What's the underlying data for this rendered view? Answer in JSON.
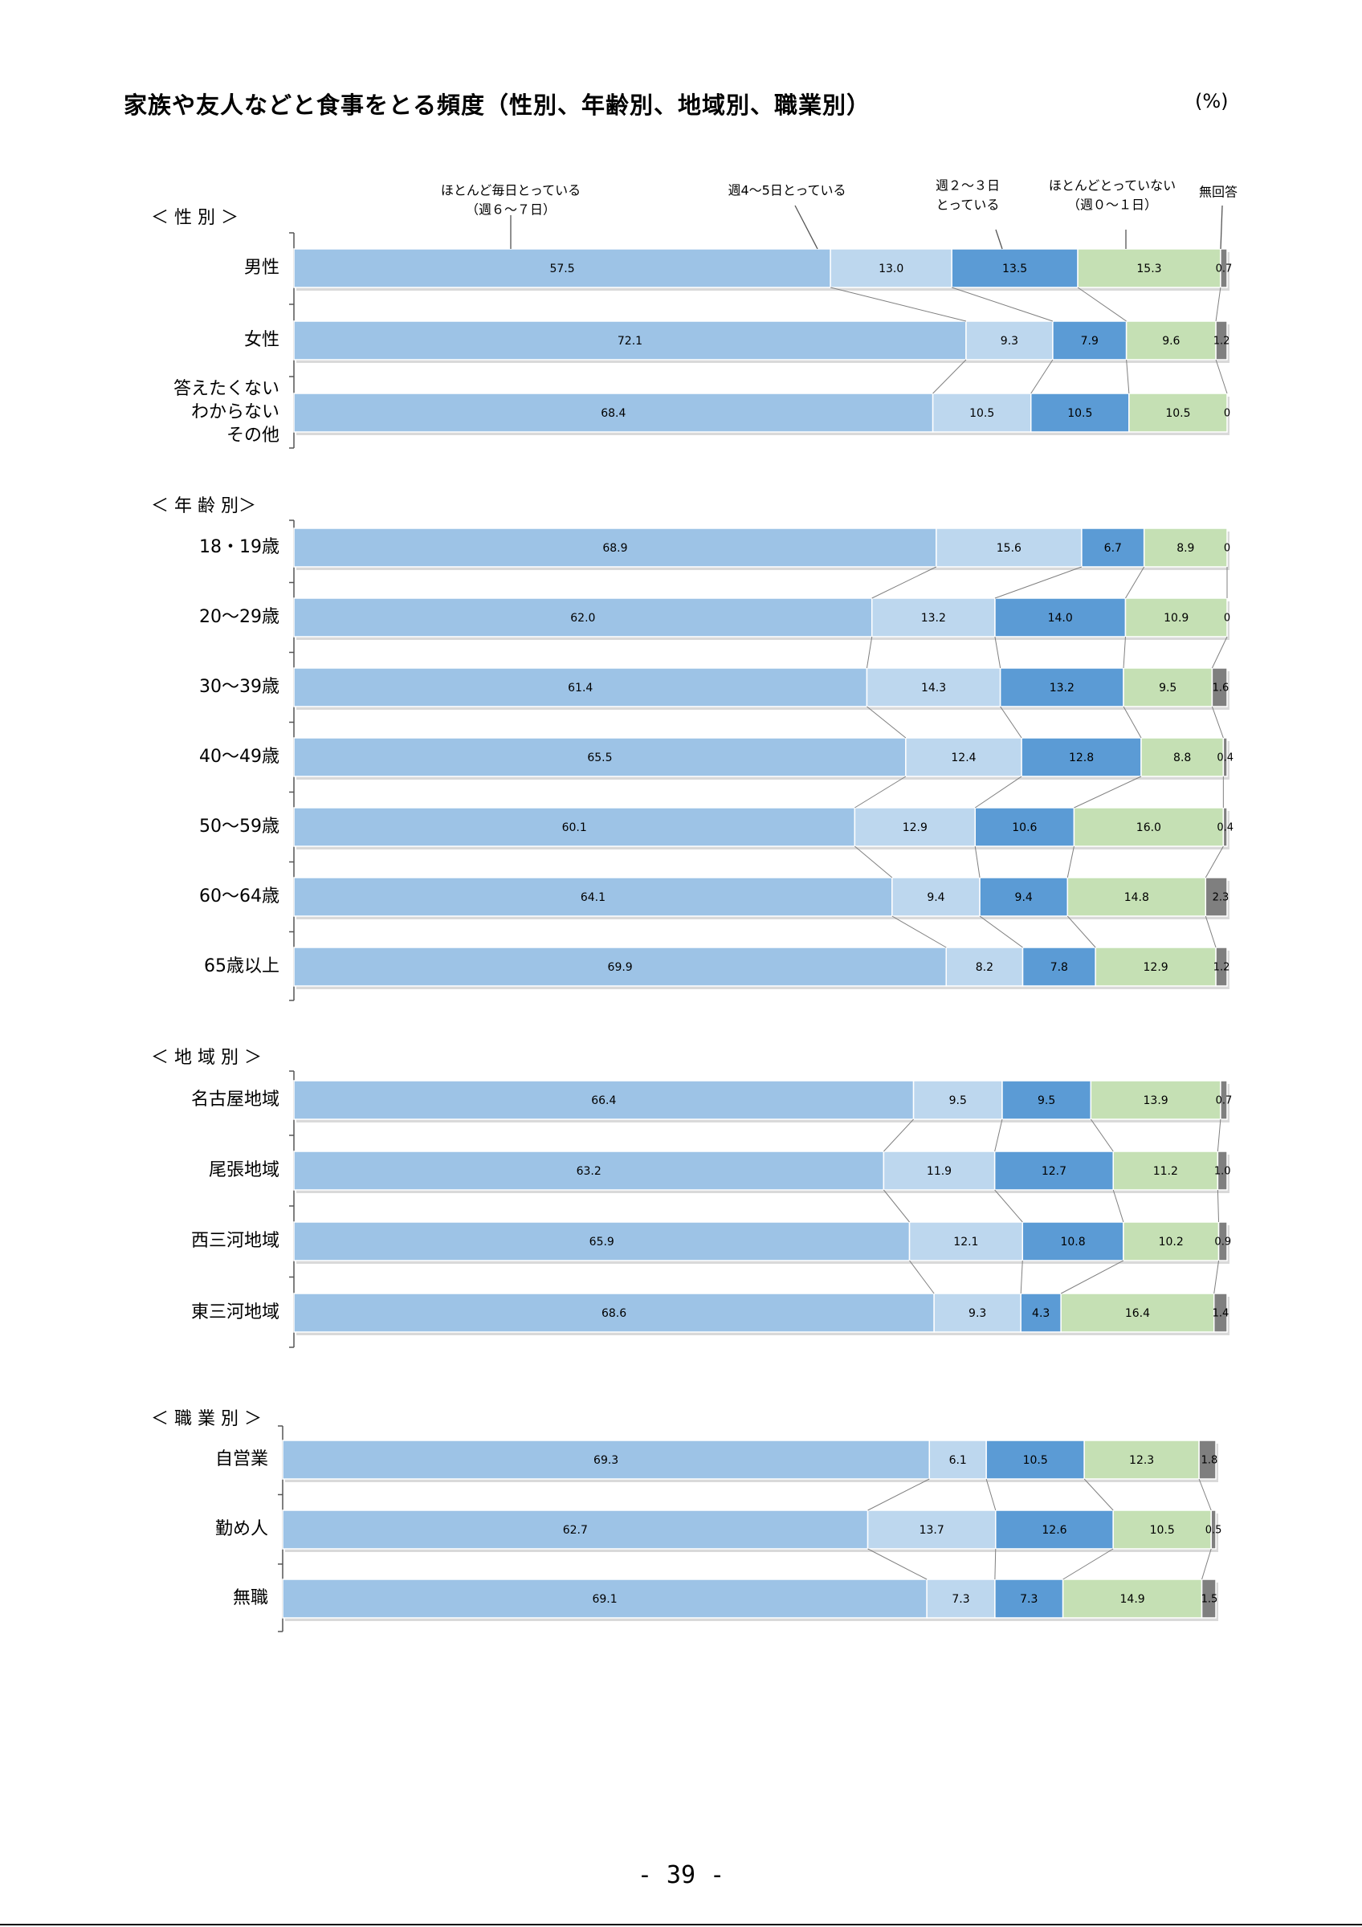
{
  "page": {
    "title": "家族や友人などと食事をとる頻度（性別、年齢別、地域別、職業別）",
    "unit": "(%)",
    "page_number": "- 39 -"
  },
  "legend": [
    {
      "lines": [
        "ほとんど毎日とっている",
        "（週６～７日）"
      ],
      "color": "#9DC3E6"
    },
    {
      "lines": [
        "週4～5日とっている"
      ],
      "color": "#BDD7EE"
    },
    {
      "lines": [
        "週２～３日",
        "とっている"
      ],
      "color": "#5B9BD5"
    },
    {
      "lines": [
        "ほとんどとっていない",
        "（週０～１日）"
      ],
      "color": "#C5E0B4"
    },
    {
      "lines": [
        "無回答"
      ],
      "color": "#7F7F7F"
    }
  ],
  "chart_data": {
    "type": "bar",
    "orientation": "horizontal",
    "stacked": true,
    "xlim": [
      0,
      100
    ],
    "series": [
      {
        "name": "ほとんど毎日とっている（週６～７日）",
        "color": "#9DC3E6"
      },
      {
        "name": "週4～5日とっている",
        "color": "#BDD7EE"
      },
      {
        "name": "週２～３日とっている",
        "color": "#5B9BD5"
      },
      {
        "name": "ほとんどとっていない（週０～１日）",
        "color": "#C5E0B4"
      },
      {
        "name": "無回答",
        "color": "#7F7F7F"
      }
    ],
    "groups": [
      {
        "label": "＜ 性 別 ＞",
        "rows": [
          {
            "category": "男性",
            "values": [
              57.5,
              13.0,
              13.5,
              15.3,
              0.7
            ],
            "labels": [
              "57.5",
              "13.0",
              "13.5",
              "15.3",
              "0.7"
            ]
          },
          {
            "category": "女性",
            "values": [
              72.1,
              9.3,
              7.9,
              9.6,
              1.2
            ],
            "labels": [
              "72.1",
              "9.3",
              "7.9",
              "9.6",
              "1.2"
            ]
          },
          {
            "category": "答えたくない\nわからない\nその他",
            "values": [
              68.4,
              10.5,
              10.5,
              10.5,
              0
            ],
            "labels": [
              "68.4",
              "10.5",
              "10.5",
              "10.5",
              "0"
            ]
          }
        ]
      },
      {
        "label": "＜ 年 齢 別＞",
        "rows": [
          {
            "category": "18・19歳",
            "values": [
              68.9,
              15.6,
              6.7,
              8.9,
              0
            ],
            "labels": [
              "68.9",
              "15.6",
              "6.7",
              "8.9",
              "0"
            ]
          },
          {
            "category": "20～29歳",
            "values": [
              62.0,
              13.2,
              14.0,
              10.9,
              0
            ],
            "labels": [
              "62.0",
              "13.2",
              "14.0",
              "10.9",
              "0"
            ]
          },
          {
            "category": "30～39歳",
            "values": [
              61.4,
              14.3,
              13.2,
              9.5,
              1.6
            ],
            "labels": [
              "61.4",
              "14.3",
              "13.2",
              "9.5",
              "1.6"
            ]
          },
          {
            "category": "40～49歳",
            "values": [
              65.5,
              12.4,
              12.8,
              8.8,
              0.4
            ],
            "labels": [
              "65.5",
              "12.4",
              "12.8",
              "8.8",
              "0.4"
            ]
          },
          {
            "category": "50～59歳",
            "values": [
              60.1,
              12.9,
              10.6,
              16.0,
              0.4
            ],
            "labels": [
              "60.1",
              "12.9",
              "10.6",
              "16.0",
              "0.4"
            ]
          },
          {
            "category": "60～64歳",
            "values": [
              64.1,
              9.4,
              9.4,
              14.8,
              2.3
            ],
            "labels": [
              "64.1",
              "9.4",
              "9.4",
              "14.8",
              "2.3"
            ]
          },
          {
            "category": "65歳以上",
            "values": [
              69.9,
              8.2,
              7.8,
              12.9,
              1.2
            ],
            "labels": [
              "69.9",
              "8.2",
              "7.8",
              "12.9",
              "1.2"
            ]
          }
        ]
      },
      {
        "label": "＜ 地 域 別 ＞",
        "rows": [
          {
            "category": "名古屋地域",
            "values": [
              66.4,
              9.5,
              9.5,
              13.9,
              0.7
            ],
            "labels": [
              "66.4",
              "9.5",
              "9.5",
              "13.9",
              "0.7"
            ]
          },
          {
            "category": "尾張地域",
            "values": [
              63.2,
              11.9,
              12.7,
              11.2,
              1.0
            ],
            "labels": [
              "63.2",
              "11.9",
              "12.7",
              "11.2",
              "1.0"
            ]
          },
          {
            "category": "西三河地域",
            "values": [
              65.9,
              12.1,
              10.8,
              10.2,
              0.9
            ],
            "labels": [
              "65.9",
              "12.1",
              "10.8",
              "10.2",
              "0.9"
            ]
          },
          {
            "category": "東三河地域",
            "values": [
              68.6,
              9.3,
              4.3,
              16.4,
              1.4
            ],
            "labels": [
              "68.6",
              "9.3",
              "4.3",
              "16.4",
              "1.4"
            ]
          }
        ]
      },
      {
        "label": "＜ 職 業 別 ＞",
        "rows": [
          {
            "category": "自営業",
            "values": [
              69.3,
              6.1,
              10.5,
              12.3,
              1.8
            ],
            "labels": [
              "69.3",
              "6.1",
              "10.5",
              "12.3",
              "1.8"
            ]
          },
          {
            "category": "勤め人",
            "values": [
              62.7,
              13.7,
              12.6,
              10.5,
              0.5
            ],
            "labels": [
              "62.7",
              "13.7",
              "12.6",
              "10.5",
              "0.5"
            ]
          },
          {
            "category": "無職",
            "values": [
              69.1,
              7.3,
              7.3,
              14.9,
              1.5
            ],
            "labels": [
              "69.1",
              "7.3",
              "7.3",
              "14.9",
              "1.5"
            ]
          }
        ]
      }
    ]
  }
}
